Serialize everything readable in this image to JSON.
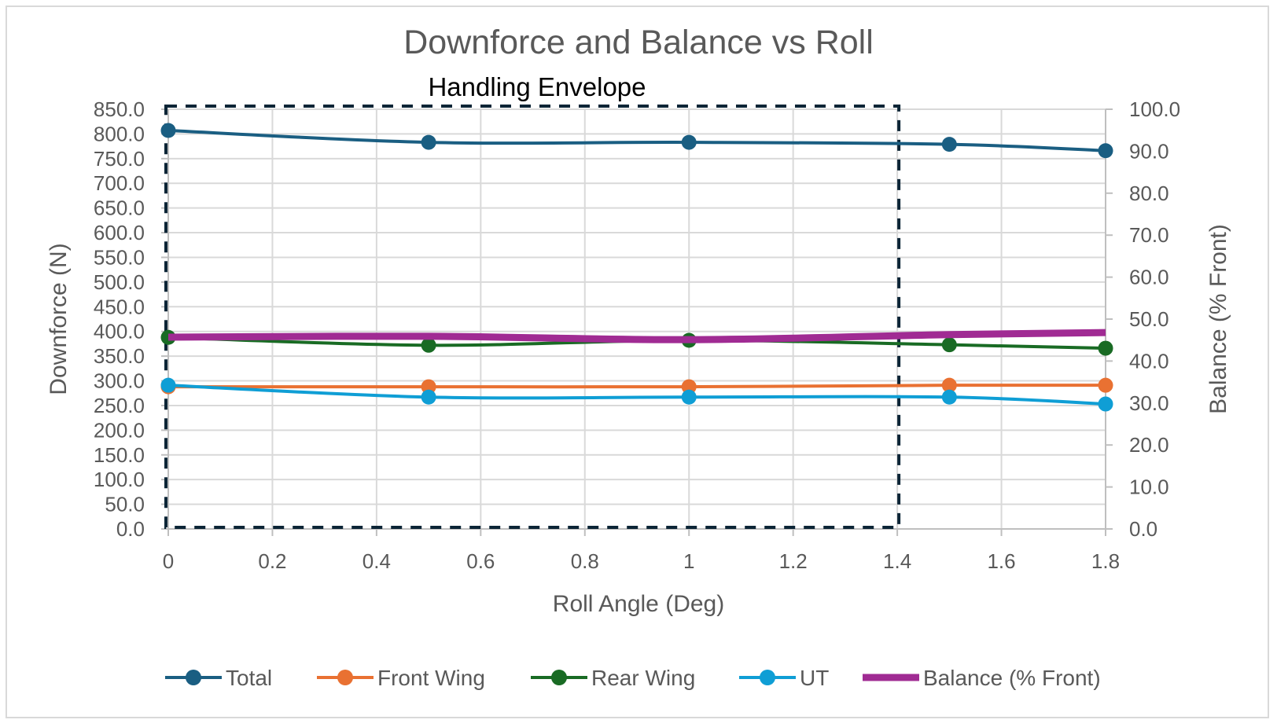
{
  "chart_data": {
    "type": "line",
    "title": "Downforce and Balance vs Roll",
    "annotation": "Handling Envelope",
    "xlabel": "Roll Angle (Deg)",
    "ylabel": "Downforce (N)",
    "y2label": "Balance (% Front)",
    "xlim": [
      0,
      1.8
    ],
    "ylim": [
      0,
      850
    ],
    "y2lim": [
      0,
      100
    ],
    "x_ticks": [
      "0",
      "0.2",
      "0.4",
      "0.6",
      "0.8",
      "1",
      "1.2",
      "1.4",
      "1.6",
      "1.8"
    ],
    "x_tick_values": [
      0,
      0.2,
      0.4,
      0.6,
      0.8,
      1.0,
      1.2,
      1.4,
      1.6,
      1.8
    ],
    "y_ticks": [
      "0.0",
      "50.0",
      "100.0",
      "150.0",
      "200.0",
      "250.0",
      "300.0",
      "350.0",
      "400.0",
      "450.0",
      "500.0",
      "550.0",
      "600.0",
      "650.0",
      "700.0",
      "750.0",
      "800.0",
      "850.0"
    ],
    "y2_ticks": [
      "0.0",
      "10.0",
      "20.0",
      "30.0",
      "40.0",
      "50.0",
      "60.0",
      "70.0",
      "80.0",
      "90.0",
      "100.0"
    ],
    "grid": true,
    "legend_position": "bottom",
    "envelope": {
      "x_range": [
        0,
        1.4
      ],
      "y_range": [
        0,
        850
      ],
      "style": "dashed"
    },
    "x": [
      0,
      0.5,
      1.0,
      1.5,
      1.8
    ],
    "series": [
      {
        "name": "Total",
        "axis": "left",
        "color": "#1a5e82",
        "markers": true,
        "values": [
          807,
          783,
          783,
          779,
          766
        ]
      },
      {
        "name": "Front Wing",
        "axis": "left",
        "color": "#e97132",
        "markers": true,
        "values": [
          288,
          288,
          288,
          291,
          291
        ]
      },
      {
        "name": "Rear Wing",
        "axis": "left",
        "color": "#196b24",
        "markers": true,
        "values": [
          388,
          372,
          382,
          373,
          366
        ]
      },
      {
        "name": "UT",
        "axis": "left",
        "color": "#0f9ed5",
        "markers": true,
        "values": [
          291,
          267,
          267,
          267,
          253
        ]
      },
      {
        "name": "Balance (% Front)",
        "axis": "right",
        "color": "#a02b93",
        "markers": false,
        "values": [
          45.7,
          45.9,
          45.1,
          46.3,
          46.8
        ]
      }
    ]
  }
}
